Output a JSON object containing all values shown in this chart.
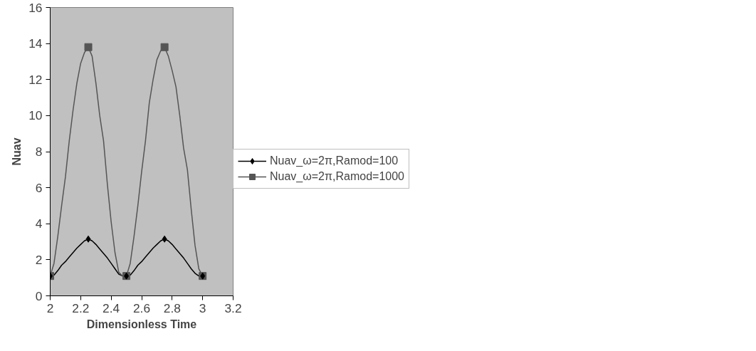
{
  "chart_data": {
    "type": "line",
    "xlabel": "Dimensionless Time",
    "ylabel": "Nuav",
    "xlim": [
      2,
      3.2
    ],
    "ylim": [
      0,
      16
    ],
    "xticks": [
      2,
      2.2,
      2.4,
      2.6,
      2.8,
      3,
      3.2
    ],
    "yticks": [
      0,
      2,
      4,
      6,
      8,
      10,
      12,
      14,
      16
    ],
    "grid": false,
    "legend": "right",
    "marker": "none",
    "series": [
      {
        "name": "Nuav_ω=2π,Ramod=100",
        "color": "#000000",
        "x": [
          2,
          2.025,
          2.05,
          2.075,
          2.1,
          2.125,
          2.15,
          2.175,
          2.2,
          2.225,
          2.25,
          2.275,
          2.3,
          2.325,
          2.35,
          2.375,
          2.4,
          2.425,
          2.45,
          2.475,
          2.5,
          2.525,
          2.55,
          2.575,
          2.6,
          2.625,
          2.65,
          2.675,
          2.7,
          2.725,
          2.75,
          2.775,
          2.8,
          2.825,
          2.85,
          2.875,
          2.9,
          2.925,
          2.95,
          2.975,
          3
        ],
        "values": [
          1.1,
          1.15,
          1.4,
          1.7,
          1.9,
          2.15,
          2.4,
          2.65,
          2.85,
          3.05,
          3.15,
          3.05,
          2.85,
          2.6,
          2.35,
          2.1,
          1.8,
          1.5,
          1.2,
          1.1,
          1.1,
          1.15,
          1.4,
          1.7,
          1.9,
          2.15,
          2.4,
          2.65,
          2.85,
          3.05,
          3.15,
          3.05,
          2.85,
          2.6,
          2.35,
          2.1,
          1.8,
          1.5,
          1.25,
          1.1,
          1.1
        ]
      },
      {
        "name": "Nuav_ω=2π,Ramod=1000",
        "color": "#555555",
        "x": [
          2,
          2.025,
          2.05,
          2.075,
          2.1,
          2.125,
          2.15,
          2.175,
          2.2,
          2.225,
          2.25,
          2.275,
          2.3,
          2.325,
          2.35,
          2.375,
          2.4,
          2.425,
          2.45,
          2.475,
          2.5,
          2.525,
          2.55,
          2.575,
          2.6,
          2.625,
          2.65,
          2.675,
          2.7,
          2.725,
          2.75,
          2.775,
          2.8,
          2.825,
          2.85,
          2.875,
          2.9,
          2.925,
          2.95,
          2.975,
          3
        ],
        "values": [
          1.1,
          1.8,
          3.3,
          5,
          6.6,
          8.6,
          10.3,
          11.8,
          12.9,
          13.5,
          13.8,
          13.3,
          11.8,
          10,
          8.6,
          6.2,
          4.1,
          2.4,
          1.3,
          1.1,
          1.1,
          1.8,
          3.3,
          5,
          6.9,
          8.6,
          10.7,
          12,
          13.1,
          13.6,
          13.8,
          13.3,
          12.5,
          11.6,
          10,
          8.2,
          7,
          4.8,
          2.8,
          1.5,
          1.1
        ]
      },
      {
        "type": "scatter",
        "marker": "square",
        "color": "#555555",
        "x": [
          2,
          2.25,
          2.5,
          2.75,
          3
        ],
        "values": [
          1.1,
          13.8,
          1.1,
          13.8,
          1.1
        ]
      },
      {
        "type": "scatter",
        "marker": "diamond",
        "color": "#000000",
        "x": [
          2,
          2.25,
          2.5,
          2.75,
          3
        ],
        "values": [
          1.1,
          3.15,
          1.1,
          3.15,
          1.1
        ]
      }
    ]
  }
}
